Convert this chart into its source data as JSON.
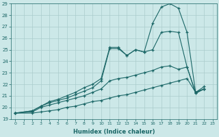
{
  "xlabel": "Humidex (Indice chaleur)",
  "xlim": [
    -0.5,
    23.5
  ],
  "ylim": [
    19,
    29
  ],
  "bg_color": "#cce8e8",
  "grid_color": "#aacccc",
  "line_color": "#1a6666",
  "lines": [
    {
      "x": [
        0,
        2,
        3,
        4,
        5,
        6,
        7,
        8,
        9,
        10,
        11,
        12,
        13,
        14,
        15,
        16,
        17,
        18,
        19,
        20,
        21,
        22
      ],
      "y": [
        19.5,
        19.5,
        19.6,
        19.7,
        19.8,
        20.0,
        20.1,
        20.3,
        20.5,
        20.6,
        20.8,
        21.0,
        21.1,
        21.3,
        21.5,
        21.7,
        21.9,
        22.1,
        22.3,
        22.5,
        21.3,
        21.6
      ]
    },
    {
      "x": [
        0,
        2,
        3,
        4,
        5,
        6,
        7,
        8,
        9,
        10,
        11,
        12,
        13,
        14,
        15,
        16,
        17,
        18,
        19,
        20,
        21,
        22
      ],
      "y": [
        19.5,
        19.6,
        20.0,
        20.2,
        20.4,
        20.6,
        20.8,
        21.0,
        21.3,
        21.6,
        22.3,
        22.5,
        22.6,
        22.8,
        23.0,
        23.2,
        23.5,
        23.6,
        23.3,
        23.5,
        21.3,
        21.6
      ]
    },
    {
      "x": [
        0,
        2,
        3,
        4,
        5,
        6,
        7,
        8,
        9,
        10,
        11,
        12,
        13,
        14,
        15,
        16,
        17,
        18,
        19,
        20,
        21,
        22
      ],
      "y": [
        19.5,
        19.7,
        20.1,
        20.4,
        20.6,
        20.8,
        21.1,
        21.4,
        21.7,
        22.3,
        25.1,
        25.1,
        24.5,
        25.0,
        24.8,
        25.0,
        26.5,
        26.6,
        26.5,
        23.5,
        21.2,
        21.6
      ]
    },
    {
      "x": [
        0,
        2,
        3,
        4,
        5,
        6,
        7,
        8,
        9,
        10,
        11,
        12,
        13,
        14,
        15,
        16,
        17,
        18,
        19,
        20,
        21,
        22
      ],
      "y": [
        19.5,
        19.7,
        20.1,
        20.5,
        20.7,
        21.0,
        21.3,
        21.7,
        22.0,
        22.5,
        25.2,
        25.2,
        24.5,
        25.0,
        24.8,
        27.3,
        28.7,
        29.0,
        28.6,
        26.5,
        21.3,
        21.8
      ]
    }
  ]
}
